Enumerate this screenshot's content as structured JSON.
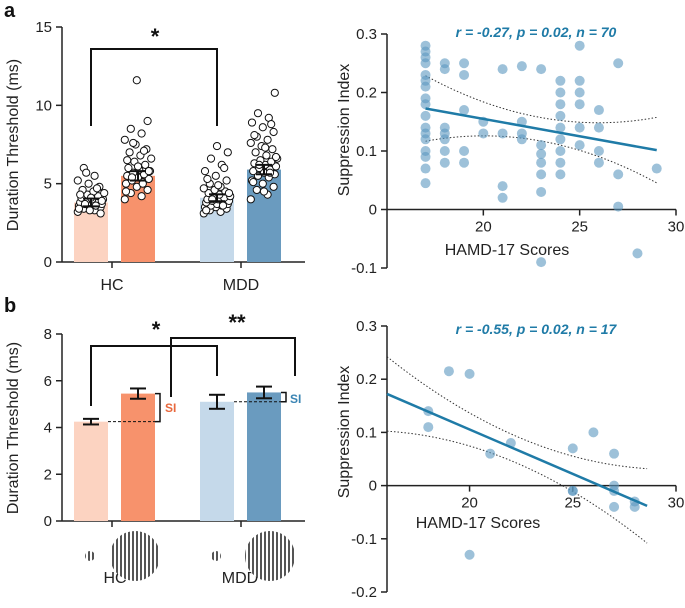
{
  "panels": {
    "a": {
      "letter": "a",
      "ylabel": "Duration Threshold (ms)",
      "significance": "*"
    },
    "b": {
      "letter": "b",
      "ylabel": "Duration Threshold (ms)",
      "significance_1": "*",
      "significance_2": "**",
      "si_label": "SI"
    }
  },
  "groups": [
    "HC",
    "MDD"
  ],
  "colors": {
    "hc_small": "#fcd3c1",
    "hc_large": "#f7926c",
    "mdd_small": "#c5d9ea",
    "mdd_large": "#6a9bbf",
    "point": "#5b98c0",
    "fit": "#1f7ba7",
    "stat_text": "#1f7ba7",
    "si_hc": "#e8683d",
    "si_mdd": "#3a84b3"
  },
  "chart_data": [
    {
      "id": "a-bars",
      "type": "bar",
      "categories": [
        "HC",
        "MDD"
      ],
      "series": [
        {
          "values": [
            3.8,
            5.5
          ]
        },
        {
          "values": [
            4.1,
            5.9
          ]
        }
      ],
      "errors": [
        [
          0.25,
          0.3
        ],
        [
          0.22,
          0.3
        ]
      ],
      "ylabel": "Duration Threshold (ms)",
      "ylim": [
        0,
        15
      ],
      "yticks": [
        0,
        5,
        10,
        15
      ],
      "points": {
        "hc_small": [
          3.2,
          3.3,
          3.4,
          3.5,
          3.5,
          3.6,
          3.6,
          3.7,
          3.7,
          3.8,
          3.8,
          3.9,
          3.9,
          4.0,
          4.0,
          4.1,
          4.2,
          4.3,
          4.4,
          4.5,
          4.6,
          4.8,
          5.0,
          5.2,
          5.5,
          6.0,
          3.1,
          3.3,
          3.4,
          3.6,
          3.7,
          3.9,
          4.1,
          4.3,
          4.7,
          5.7
        ],
        "hc_large": [
          4.0,
          4.2,
          4.4,
          4.6,
          4.8,
          5.0,
          5.1,
          5.2,
          5.3,
          5.4,
          5.5,
          5.6,
          5.7,
          5.8,
          5.9,
          6.0,
          6.2,
          6.4,
          6.6,
          6.8,
          7.0,
          7.2,
          7.5,
          7.8,
          8.2,
          8.5,
          9.0,
          11.6,
          4.5,
          5.0,
          5.4,
          5.8,
          6.1,
          6.5,
          7.1,
          7.6
        ],
        "mdd_small": [
          3.1,
          3.2,
          3.3,
          3.4,
          3.5,
          3.5,
          3.6,
          3.6,
          3.7,
          3.7,
          3.8,
          3.8,
          3.9,
          3.9,
          4.0,
          4.0,
          4.1,
          4.1,
          4.2,
          4.3,
          4.4,
          4.5,
          4.6,
          4.7,
          4.8,
          5.0,
          5.2,
          5.5,
          5.8,
          6.2,
          6.6,
          7.0,
          7.4,
          3.3,
          3.6,
          4.0,
          4.4,
          4.9,
          5.3,
          6.0
        ],
        "mdd_large": [
          4.0,
          4.3,
          4.6,
          4.8,
          5.0,
          5.2,
          5.4,
          5.5,
          5.6,
          5.7,
          5.8,
          5.9,
          6.0,
          6.1,
          6.2,
          6.3,
          6.4,
          6.5,
          6.6,
          6.8,
          7.0,
          7.2,
          7.4,
          7.6,
          7.8,
          8.0,
          8.3,
          8.6,
          8.9,
          9.2,
          9.5,
          10.8,
          4.5,
          5.1,
          5.7,
          6.2,
          6.7,
          7.3,
          8.1,
          8.8
        ]
      }
    },
    {
      "id": "a-scatter",
      "type": "scatter",
      "annotation": "r = -0.27, p = 0.02, n = 70",
      "xlabel": "HAMD-17 Scores",
      "ylabel": "Suppression Index",
      "xlim": [
        15,
        30
      ],
      "ylim": [
        -0.1,
        0.3
      ],
      "xticks": [
        20,
        25,
        30
      ],
      "yticks": [
        -0.1,
        0,
        0.1,
        0.2,
        0.3
      ],
      "points": [
        [
          17,
          0.28
        ],
        [
          17,
          0.27
        ],
        [
          17,
          0.26
        ],
        [
          17,
          0.25
        ],
        [
          17,
          0.23
        ],
        [
          17,
          0.22
        ],
        [
          17,
          0.21
        ],
        [
          17,
          0.19
        ],
        [
          17,
          0.18
        ],
        [
          17,
          0.16
        ],
        [
          17,
          0.14
        ],
        [
          17,
          0.13
        ],
        [
          17,
          0.12
        ],
        [
          17,
          0.1
        ],
        [
          17,
          0.09
        ],
        [
          17,
          0.07
        ],
        [
          17,
          0.045
        ],
        [
          18,
          0.25
        ],
        [
          18,
          0.24
        ],
        [
          18,
          0.14
        ],
        [
          18,
          0.13
        ],
        [
          18,
          0.12
        ],
        [
          18,
          0.1
        ],
        [
          18,
          0.08
        ],
        [
          19,
          0.25
        ],
        [
          19,
          0.23
        ],
        [
          19,
          0.17
        ],
        [
          19,
          0.1
        ],
        [
          19,
          0.08
        ],
        [
          20,
          0.15
        ],
        [
          20,
          0.13
        ],
        [
          21,
          0.24
        ],
        [
          21,
          0.13
        ],
        [
          21,
          0.04
        ],
        [
          21,
          0.02
        ],
        [
          22,
          0.245
        ],
        [
          22,
          0.15
        ],
        [
          22,
          0.13
        ],
        [
          22,
          0.12
        ],
        [
          23,
          0.24
        ],
        [
          23,
          0.11
        ],
        [
          23,
          0.095
        ],
        [
          23,
          0.08
        ],
        [
          23,
          0.06
        ],
        [
          23,
          0.03
        ],
        [
          23,
          -0.09
        ],
        [
          24,
          0.22
        ],
        [
          24,
          0.2
        ],
        [
          24,
          0.18
        ],
        [
          24,
          0.16
        ],
        [
          24,
          0.14
        ],
        [
          24,
          0.12
        ],
        [
          24,
          0.08
        ],
        [
          24,
          0.06
        ],
        [
          25,
          0.28
        ],
        [
          25,
          0.22
        ],
        [
          25,
          0.2
        ],
        [
          25,
          0.18
        ],
        [
          25,
          0.14
        ],
        [
          25,
          0.11
        ],
        [
          26,
          0.17
        ],
        [
          26,
          0.14
        ],
        [
          26,
          0.1
        ],
        [
          26,
          0.08
        ],
        [
          27,
          0.25
        ],
        [
          27,
          0.06
        ],
        [
          27,
          0.005
        ],
        [
          28,
          -0.075
        ],
        [
          29,
          0.07
        ],
        [
          24,
          0.1
        ]
      ],
      "fit": {
        "slope": -0.00594,
        "intercept": 0.2737,
        "x_range": [
          17,
          29
        ]
      }
    },
    {
      "id": "b-bars",
      "type": "bar",
      "categories": [
        "HC",
        "MDD"
      ],
      "series": [
        {
          "values": [
            4.25,
            5.45
          ]
        },
        {
          "values": [
            5.1,
            5.5
          ]
        }
      ],
      "errors": [
        [
          0.12,
          0.22
        ],
        [
          0.3,
          0.25
        ]
      ],
      "ylabel": "Duration Threshold (ms)",
      "ylim": [
        0,
        8
      ],
      "yticks": [
        0,
        2,
        4,
        6,
        8
      ]
    },
    {
      "id": "b-scatter",
      "type": "scatter",
      "annotation": "r = -0.55, p = 0.02, n = 17",
      "xlabel": "HAMD-17 Scores",
      "ylabel": "Suppression Index",
      "xlim": [
        16,
        30
      ],
      "ylim": [
        -0.2,
        0.3
      ],
      "xticks": [
        20,
        25,
        30
      ],
      "yticks": [
        -0.2,
        -0.1,
        0,
        0.1,
        0.2,
        0.3
      ],
      "points": [
        [
          18,
          0.14
        ],
        [
          18,
          0.11
        ],
        [
          19,
          0.215
        ],
        [
          20,
          0.21
        ],
        [
          20,
          -0.13
        ],
        [
          21,
          0.06
        ],
        [
          22,
          0.08
        ],
        [
          25,
          0.07
        ],
        [
          25,
          -0.01
        ],
        [
          26,
          0.1
        ],
        [
          27,
          0.06
        ],
        [
          27,
          0.0
        ],
        [
          27,
          -0.01
        ],
        [
          27,
          -0.04
        ],
        [
          28,
          -0.03
        ],
        [
          28,
          -0.04
        ],
        [
          25,
          -0.01
        ]
      ],
      "fit": {
        "slope": -0.0167,
        "intercept": 0.4395,
        "x_range": [
          16,
          28.6
        ]
      }
    }
  ]
}
